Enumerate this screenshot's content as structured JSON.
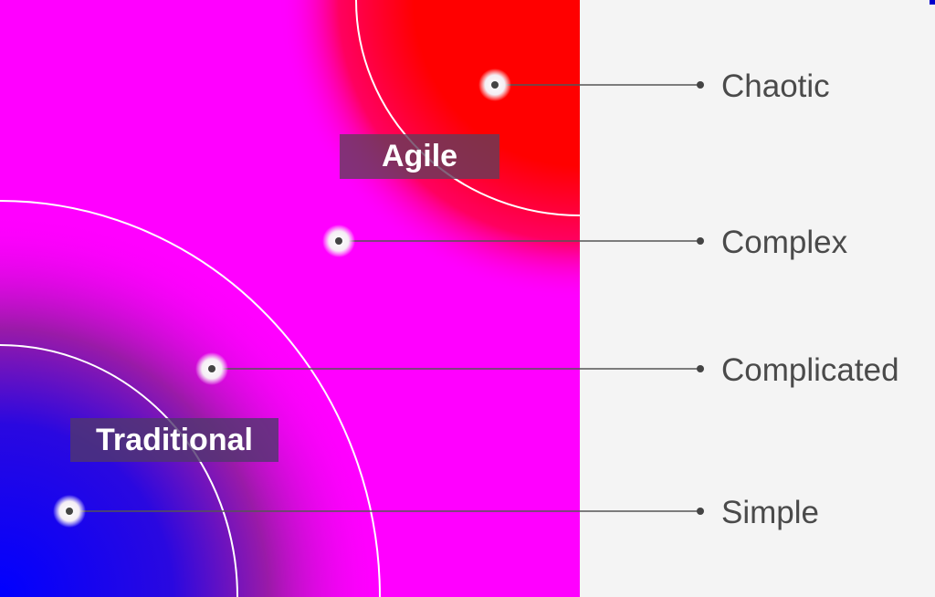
{
  "levels": [
    {
      "label": "Chaotic"
    },
    {
      "label": "Complex"
    },
    {
      "label": "Complicated"
    },
    {
      "label": "Simple"
    }
  ],
  "approaches": {
    "agile": "Agile",
    "traditional": "Traditional"
  },
  "colors": {
    "magenta": "#ff00ff",
    "blue": "#0000ff",
    "red": "#ff0000",
    "background": "#f4f4f4",
    "label_text": "#4a4a4a"
  }
}
